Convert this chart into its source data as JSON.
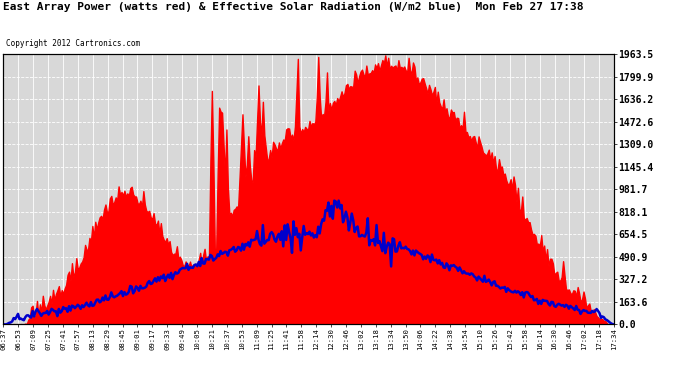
{
  "title": "East Array Power (watts red) & Effective Solar Radiation (W/m2 blue)  Mon Feb 27 17:38",
  "copyright": "Copyright 2012 Cartronics.com",
  "y_ticks": [
    0.0,
    163.6,
    327.2,
    490.9,
    654.5,
    818.1,
    981.7,
    1145.4,
    1309.0,
    1472.6,
    1636.2,
    1799.9,
    1963.5
  ],
  "y_max": 1963.5,
  "y_min": 0.0,
  "bg_color": "#ffffff",
  "plot_bg_color": "#d8d8d8",
  "grid_color": "#ffffff",
  "red_color": "#ff0000",
  "blue_color": "#0000cc",
  "x_labels": [
    "06:37",
    "06:53",
    "07:09",
    "07:25",
    "07:41",
    "07:57",
    "08:13",
    "08:29",
    "08:45",
    "09:01",
    "09:17",
    "09:33",
    "09:49",
    "10:05",
    "10:21",
    "10:37",
    "10:53",
    "11:09",
    "11:25",
    "11:41",
    "11:58",
    "12:14",
    "12:30",
    "12:46",
    "13:02",
    "13:18",
    "13:34",
    "13:50",
    "14:06",
    "14:22",
    "14:38",
    "14:54",
    "15:10",
    "15:26",
    "15:42",
    "15:58",
    "16:14",
    "16:30",
    "16:46",
    "17:02",
    "17:18",
    "17:34"
  ]
}
